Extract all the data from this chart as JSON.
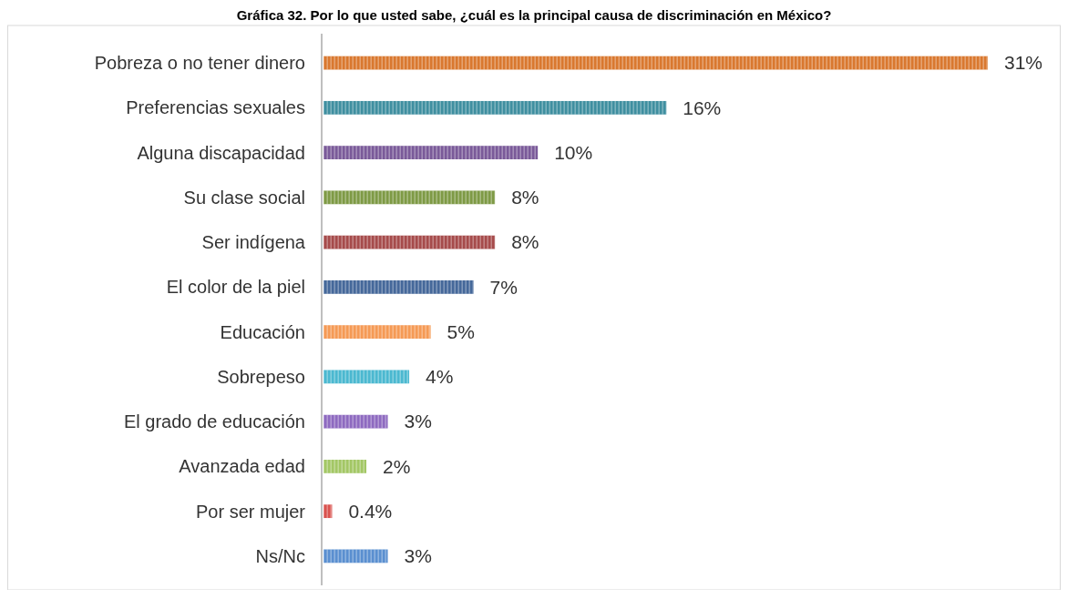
{
  "chart_data": {
    "type": "bar",
    "orientation": "horizontal",
    "title": "Gráfica 32. Por lo que usted sabe, ¿cuál es la principal causa de discriminación en México?",
    "categories": [
      "Pobreza o no tener dinero",
      "Preferencias sexuales",
      "Alguna discapacidad",
      "Su clase social",
      "Ser indígena",
      "El color de la piel",
      "Educación",
      "Sobrepeso",
      "El grado de educación",
      "Avanzada edad",
      "Por ser mujer",
      "Ns/Nc"
    ],
    "values": [
      31,
      16,
      10,
      8,
      8,
      7,
      5,
      4,
      3,
      2,
      0.4,
      3
    ],
    "colors": [
      "#d9782f",
      "#3f8fa0",
      "#7a5a99",
      "#7e9a45",
      "#a64b4b",
      "#45689a",
      "#f59a55",
      "#4bb8d0",
      "#8e6ac0",
      "#a3c765",
      "#d9534f",
      "#5a8fd0"
    ],
    "value_labels": [
      "31%",
      "16%",
      "10%",
      "8%",
      "8%",
      "7%",
      "5%",
      "4%",
      "3%",
      "2%",
      "0.4%",
      "3%"
    ]
  }
}
